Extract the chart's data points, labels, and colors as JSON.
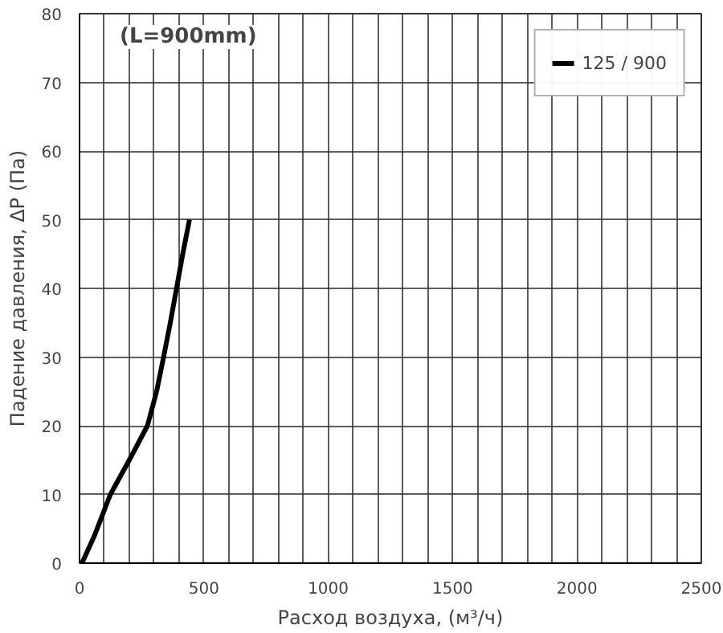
{
  "chart_data": {
    "type": "line",
    "title": "(L=900mm)",
    "xlabel": "Расход воздуха, (м³/ч)",
    "ylabel": "Падение давления, ΔP (Па)",
    "x": [
      10,
      60,
      124,
      200,
      273,
      310,
      338,
      365,
      390,
      415,
      442
    ],
    "series": [
      {
        "name": "125 / 900",
        "color": "#000000",
        "values": [
          0,
          4,
          10,
          15,
          20,
          25,
          30,
          35,
          40,
          45,
          50
        ]
      }
    ],
    "xlim": [
      0,
      2500
    ],
    "ylim": [
      0,
      80
    ],
    "xticks": [
      0,
      {
        "value": 100,
        "label": null
      },
      {
        "value": 200,
        "label": null
      },
      {
        "value": 300,
        "label": null
      },
      {
        "value": 400,
        "label": null
      },
      500,
      {
        "value": 600,
        "label": null
      },
      {
        "value": 700,
        "label": null
      },
      {
        "value": 800,
        "label": null
      },
      {
        "value": 900,
        "label": null
      },
      1000,
      {
        "value": 1100,
        "label": null
      },
      {
        "value": 1200,
        "label": null
      },
      {
        "value": 1300,
        "label": null
      },
      {
        "value": 1400,
        "label": null
      },
      1500,
      {
        "value": 1600,
        "label": null
      },
      {
        "value": 1700,
        "label": null
      },
      {
        "value": 1800,
        "label": null
      },
      {
        "value": 1900,
        "label": null
      },
      2000,
      {
        "value": 2100,
        "label": null
      },
      {
        "value": 2200,
        "label": null
      },
      {
        "value": 2300,
        "label": null
      },
      {
        "value": 2400,
        "label": null
      },
      2500
    ],
    "yticks": [
      0,
      10,
      20,
      30,
      40,
      50,
      60,
      70,
      80
    ],
    "grid": true,
    "legend": "top right",
    "line_style": "solid",
    "marker": "none"
  }
}
